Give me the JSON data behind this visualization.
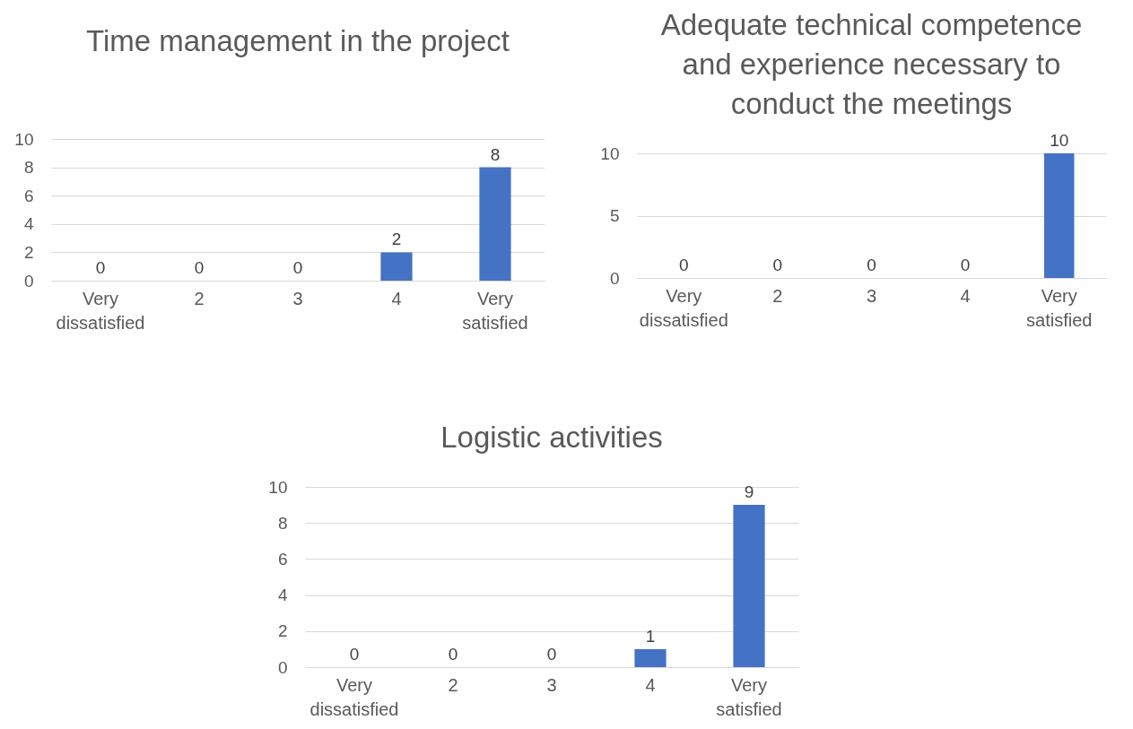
{
  "chart_data": [
    {
      "type": "bar",
      "title": "Time management in the project",
      "categories": [
        "Very dissatisfied",
        "2",
        "3",
        "4",
        "Very satisfied"
      ],
      "values": [
        0,
        0,
        0,
        2,
        8
      ],
      "color": "#4472c4",
      "ylim": [
        0,
        10
      ],
      "yticks": [
        0,
        2,
        4,
        6,
        8,
        10
      ],
      "grid": "y",
      "data_labels": true
    },
    {
      "type": "bar",
      "title": "Adequate technical competence and experience necessary to conduct the meetings",
      "categories": [
        "Very dissatisfied",
        "2",
        "3",
        "4",
        "Very satisfied"
      ],
      "values": [
        0,
        0,
        0,
        0,
        10
      ],
      "color": "#4472c4",
      "ylim": [
        0,
        10
      ],
      "yticks": [
        0,
        5,
        10
      ],
      "grid": "y",
      "data_labels": true
    },
    {
      "type": "bar",
      "title": "Logistic activities",
      "categories": [
        "Very dissatisfied",
        "2",
        "3",
        "4",
        "Very satisfied"
      ],
      "values": [
        0,
        0,
        0,
        1,
        9
      ],
      "color": "#4472c4",
      "ylim": [
        0,
        10
      ],
      "yticks": [
        0,
        2,
        4,
        6,
        8,
        10
      ],
      "grid": "y",
      "data_labels": true
    }
  ]
}
